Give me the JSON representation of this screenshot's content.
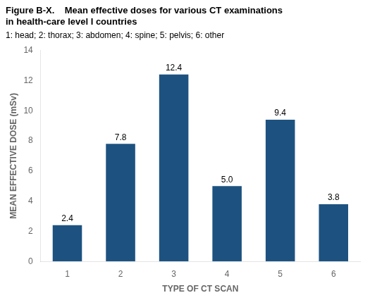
{
  "chart_data": {
    "type": "bar",
    "title": [
      "Figure B-X.    Mean effective doses for various CT examinations",
      "in health-care level I countries"
    ],
    "subtitle": "1: head; 2: thorax; 3: abdomen; 4: spine; 5: pelvis; 6: other",
    "xlabel": "TYPE OF CT SCAN",
    "ylabel": "MEAN EFFECTIVE DOSE (mSv)",
    "categories": [
      "1",
      "2",
      "3",
      "4",
      "5",
      "6"
    ],
    "values": [
      2.4,
      7.8,
      12.4,
      5.0,
      9.4,
      3.8
    ],
    "value_labels": [
      "2.4",
      "7.8",
      "12.4",
      "5.0",
      "9.4",
      "3.8"
    ],
    "color": "#1d5280",
    "ylim": [
      0,
      14
    ],
    "yticks": [
      0,
      2,
      4,
      6,
      8,
      10,
      12,
      14
    ],
    "grid": false,
    "data_labels": true
  }
}
